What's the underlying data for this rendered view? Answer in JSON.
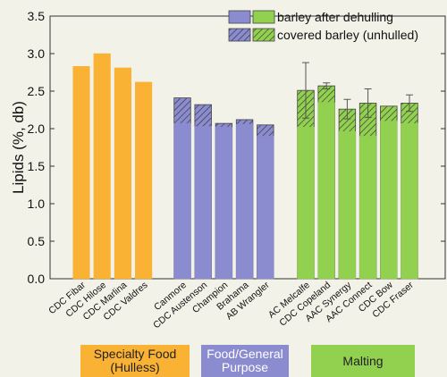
{
  "chart_data": {
    "type": "bar",
    "ylabel": "Lipids (%, db)",
    "ylim": [
      0,
      3.5
    ],
    "yticks": [
      "0.0",
      "0.5",
      "1.0",
      "1.5",
      "2.0",
      "2.5",
      "3.0",
      "3.5"
    ],
    "grid": false,
    "legend_position": "top-right",
    "legend": [
      {
        "label": "barley after dehulling",
        "style": "solid",
        "colors": [
          "#8b8bd0",
          "#92d050"
        ]
      },
      {
        "label": "covered barley (unhulled)",
        "style": "hatched",
        "colors": [
          "#8b8bd0",
          "#92d050"
        ]
      }
    ],
    "colors": {
      "specialty": "#f9b233",
      "food": "#8b8bd0",
      "malting": "#92d050",
      "hatch": "#333333"
    },
    "groups": [
      {
        "id": "specialty",
        "label_lines": [
          "Specialty Food",
          "(Hulless)"
        ],
        "color": "#f9b233",
        "text_color": "#222222",
        "categories": [
          {
            "name": "CDC Fibar",
            "dehulled": 2.83
          },
          {
            "name": "CDC Hilose",
            "dehulled": 3.0
          },
          {
            "name": "CDC Marlina",
            "dehulled": 2.81
          },
          {
            "name": "CDC Valdres",
            "dehulled": 2.62
          }
        ]
      },
      {
        "id": "food",
        "label_lines": [
          "Food/General",
          "Purpose"
        ],
        "color": "#8b8bd0",
        "text_color": "#ffffff",
        "categories": [
          {
            "name": "Canmore",
            "dehulled": 2.07,
            "covered": 2.41
          },
          {
            "name": "CDC Austenson",
            "dehulled": 2.03,
            "covered": 2.32
          },
          {
            "name": "Champion",
            "dehulled": 2.02,
            "covered": 2.07
          },
          {
            "name": "Brahama",
            "dehulled": 2.06,
            "covered": 2.12
          },
          {
            "name": "AB Wrangler",
            "dehulled": 1.9,
            "covered": 2.05
          }
        ]
      },
      {
        "id": "malting",
        "label_lines": [
          "Malting"
        ],
        "color": "#92d050",
        "text_color": "#222222",
        "categories": [
          {
            "name": "AC Melcalfe",
            "dehulled": 2.02,
            "covered": 2.51,
            "error": 0.37
          },
          {
            "name": "CDC Copeland",
            "dehulled": 2.35,
            "covered": 2.57,
            "error": 0.04
          },
          {
            "name": "AAC Synergy",
            "dehulled": 1.96,
            "covered": 2.26,
            "error": 0.13
          },
          {
            "name": "AAC Connect",
            "dehulled": 1.9,
            "covered": 2.34,
            "error": 0.19
          },
          {
            "name": "CDC Bow",
            "dehulled": 2.1,
            "covered": 2.3
          },
          {
            "name": "CDC Fraser",
            "dehulled": 2.07,
            "covered": 2.34,
            "error": 0.11
          }
        ]
      }
    ]
  }
}
